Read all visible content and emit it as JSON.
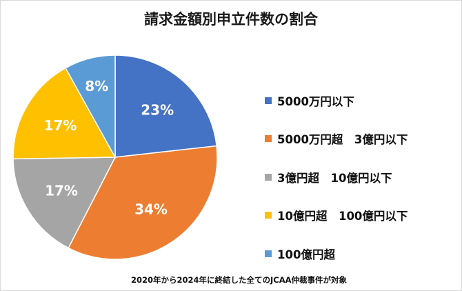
{
  "chart_data": {
    "type": "pie",
    "title": "請求金額別申立件数の割合",
    "start": "top",
    "direction": "clockwise",
    "categories": [
      "5000万円以下",
      "5000万円超　3億円以下",
      "3億円超　10億円以下",
      "10億円超　100億円以下",
      "100億円超"
    ],
    "values": [
      23,
      34,
      17,
      17,
      8
    ],
    "data_labels": [
      "23%",
      "34%",
      "17%",
      "17%",
      "8%"
    ],
    "colors": [
      "#4472c4",
      "#ed7d31",
      "#a5a5a5",
      "#ffc000",
      "#5b9bd5"
    ],
    "legend_placement": "right",
    "note": "2020年から2024年に終結した全てのJCAA仲裁事件が対象"
  }
}
